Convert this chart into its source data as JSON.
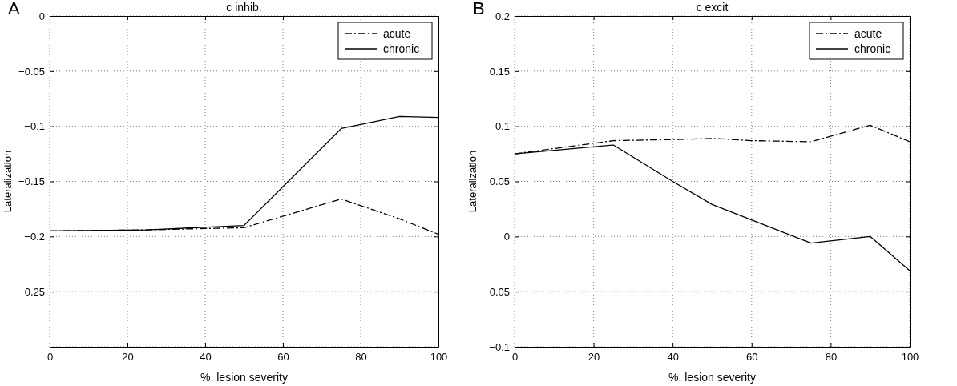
{
  "chart_data": [
    {
      "type": "line",
      "title": "c inhib.",
      "xlabel": "%, lesion severity",
      "ylabel": "Lateralization",
      "annotations": [
        "A"
      ],
      "xlim": [
        0,
        100
      ],
      "xticks": [
        0,
        20,
        40,
        60,
        80,
        100
      ],
      "ylim": [
        -0.3,
        0
      ],
      "yticks": [
        {
          "value": -0.3,
          "label": null
        },
        -0.25,
        -0.2,
        -0.15,
        -0.1,
        -0.05,
        0
      ],
      "grid": true,
      "legend": "top right",
      "marker": "none",
      "series": [
        {
          "name": "acute",
          "color": "#000000",
          "line_style": "dashed",
          "x": [
            0,
            25,
            50,
            75,
            90,
            100
          ],
          "values": [
            -0.195,
            -0.194,
            -0.192,
            -0.166,
            -0.184,
            -0.198
          ]
        },
        {
          "name": "chronic",
          "color": "#000000",
          "line_style": "solid",
          "x": [
            0,
            25,
            50,
            75,
            90,
            100
          ],
          "values": [
            -0.195,
            -0.194,
            -0.19,
            -0.102,
            -0.091,
            -0.092
          ]
        }
      ]
    },
    {
      "type": "line",
      "title": "c excit",
      "xlabel": "%, lesion severity",
      "ylabel": "Lateralization",
      "annotations": [
        "B"
      ],
      "xlim": [
        0,
        100
      ],
      "xticks": [
        0,
        20,
        40,
        60,
        80,
        100
      ],
      "ylim": [
        -0.1,
        0.2
      ],
      "yticks": [
        -0.1,
        -0.05,
        0,
        0.05,
        0.1,
        0.15,
        0.2
      ],
      "grid": true,
      "legend": "top right",
      "marker": "none",
      "series": [
        {
          "name": "acute",
          "color": "#000000",
          "line_style": "dashed",
          "x": [
            0,
            25,
            40,
            50,
            60,
            75,
            90,
            100
          ],
          "values": [
            0.075,
            0.087,
            0.088,
            0.089,
            0.087,
            0.086,
            0.101,
            0.086
          ]
        },
        {
          "name": "chronic",
          "color": "#000000",
          "line_style": "solid",
          "x": [
            0,
            25,
            40,
            50,
            75,
            90,
            100
          ],
          "values": [
            0.075,
            0.083,
            0.05,
            0.029,
            -0.006,
            0,
            -0.031
          ]
        }
      ]
    }
  ]
}
